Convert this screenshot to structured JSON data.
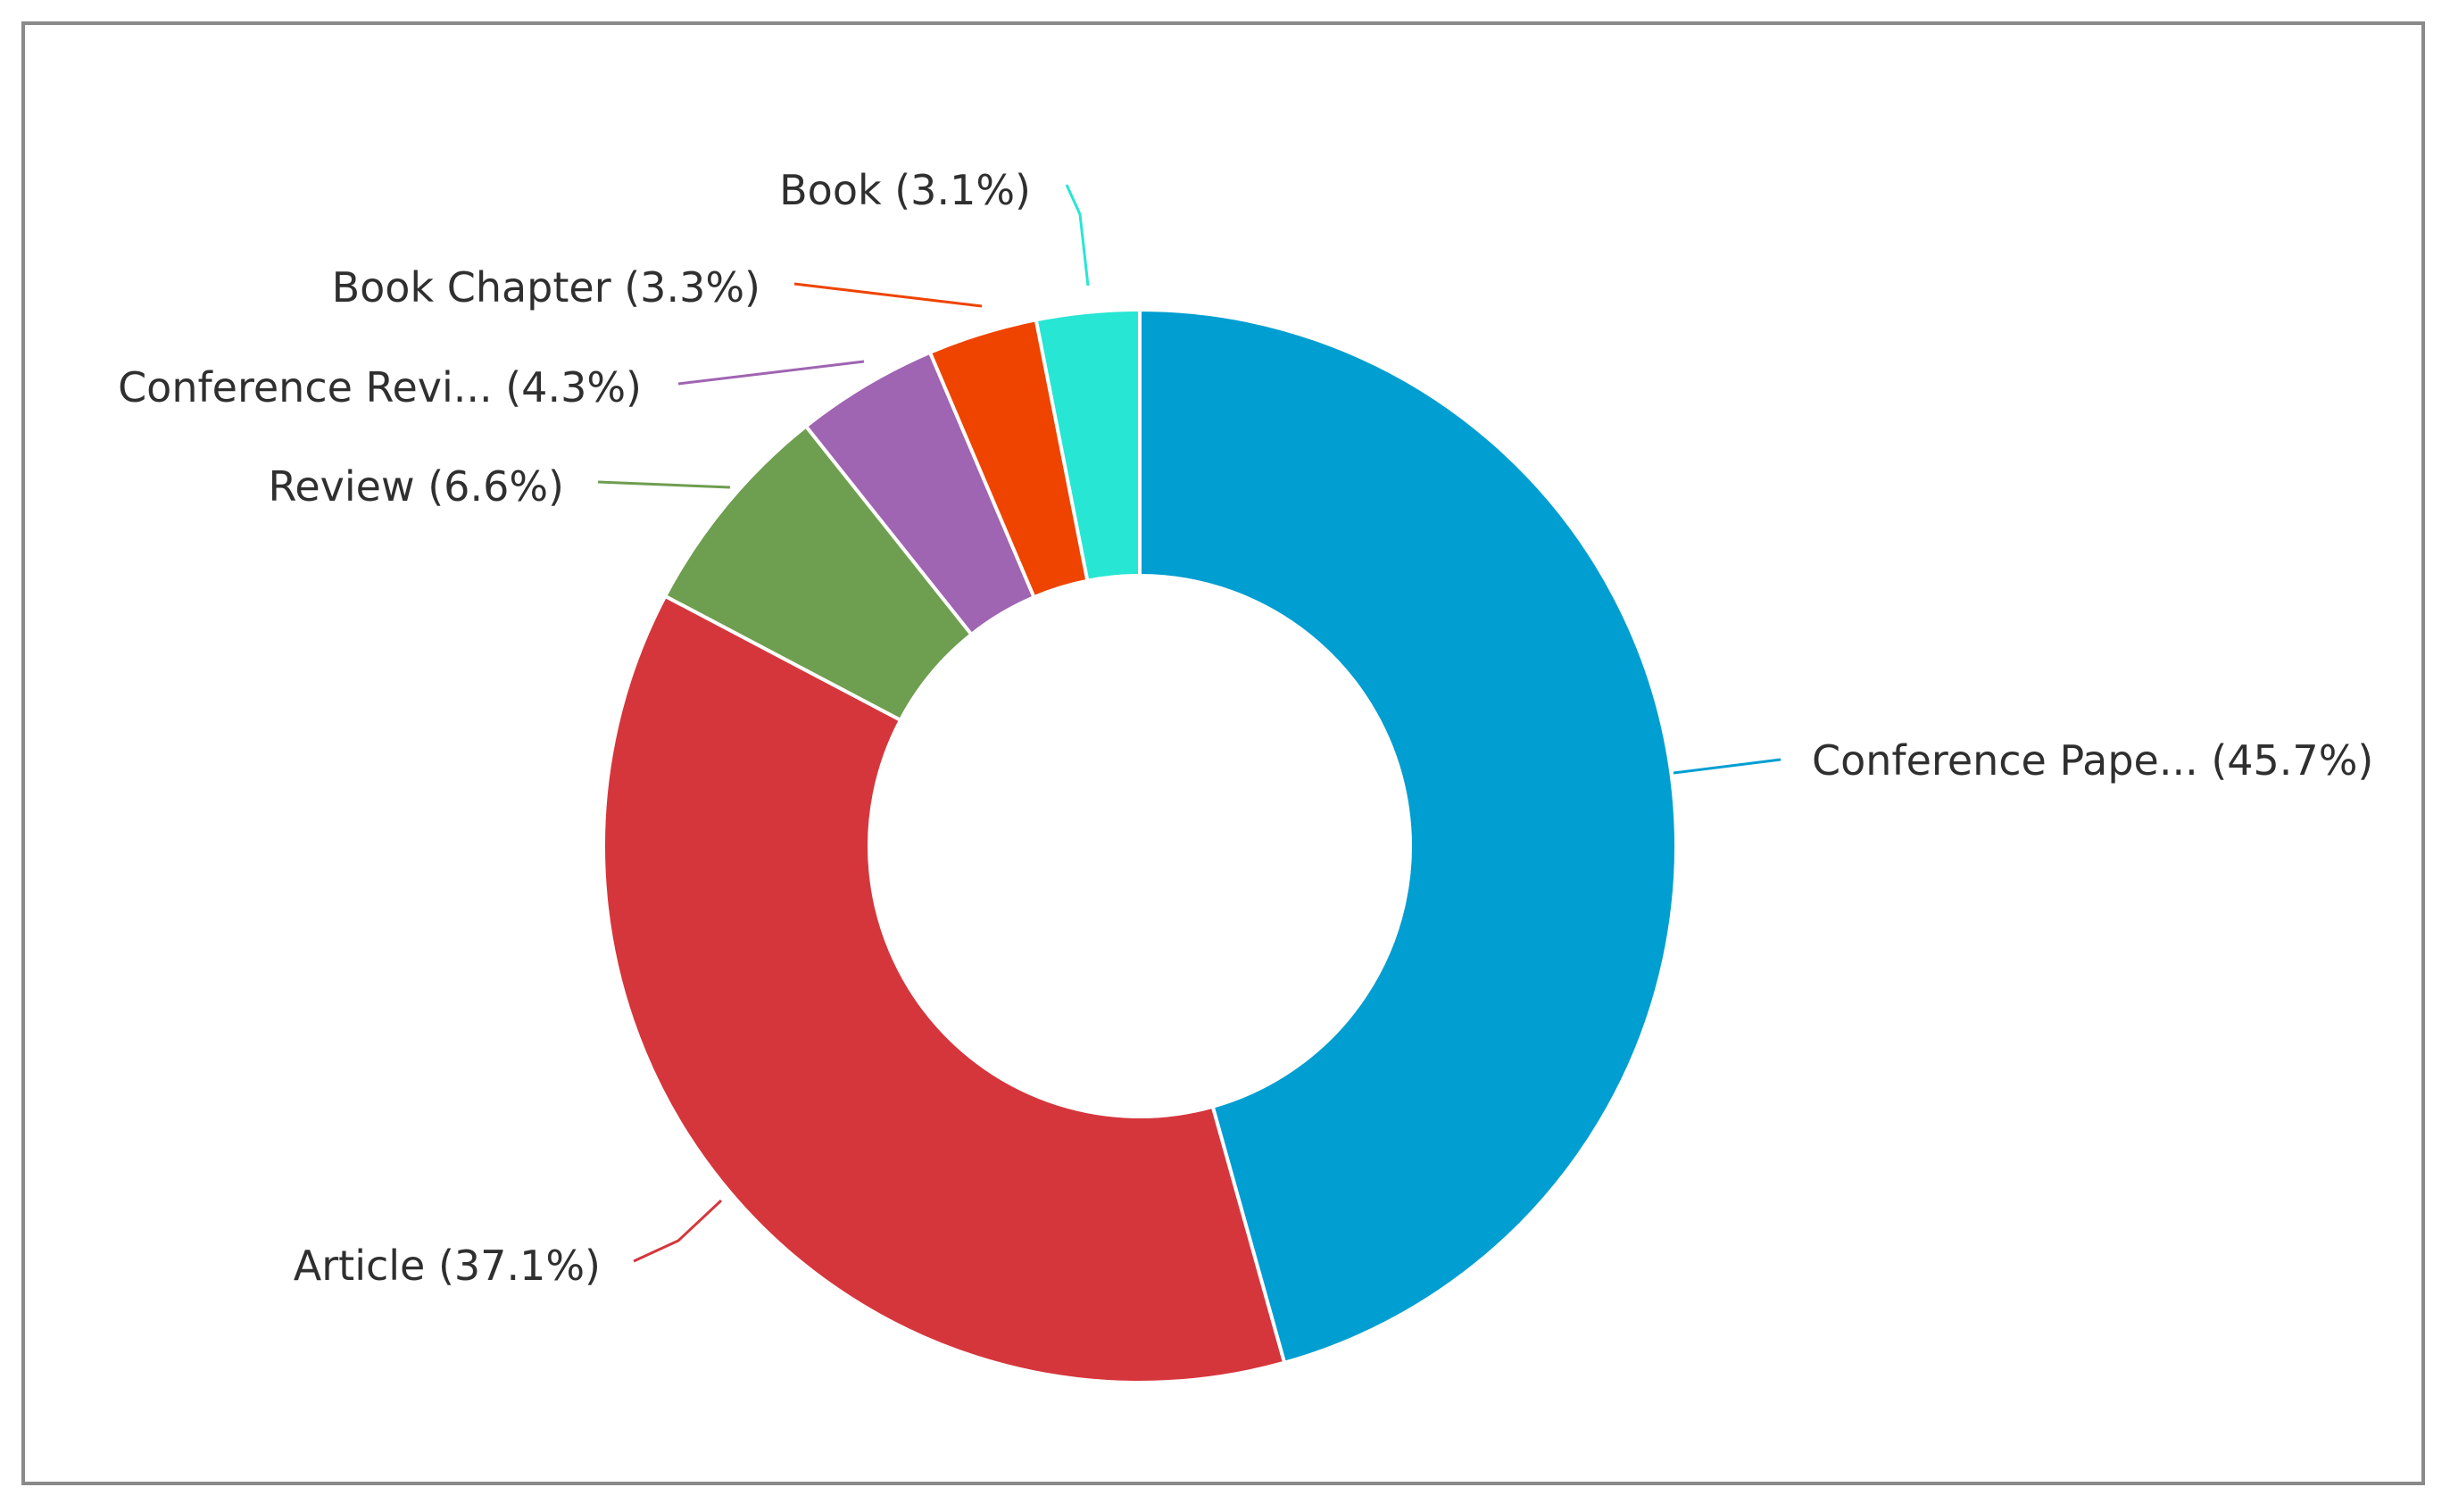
{
  "chart_data": {
    "type": "pie",
    "donut": true,
    "title": "",
    "slices": [
      {
        "label": "Conference Pape...",
        "value": 45.7,
        "display": "Conference Pape... (45.7%)",
        "color": "#009ed1"
      },
      {
        "label": "Article",
        "value": 37.1,
        "display": "Article (37.1%)",
        "color": "#d5363c"
      },
      {
        "label": "Review",
        "value": 6.6,
        "display": "Review (6.6%)",
        "color": "#6e9e4f"
      },
      {
        "label": "Conference Revi...",
        "value": 4.3,
        "display": "Conference Revi... (4.3%)",
        "color": "#9f64b2"
      },
      {
        "label": "Book Chapter",
        "value": 3.3,
        "display": "Book Chapter (3.3%)",
        "color": "#ef4300"
      },
      {
        "label": "Book",
        "value": 3.1,
        "display": "Book (3.1%)",
        "color": "#27e6d3"
      }
    ],
    "legend": "none"
  }
}
